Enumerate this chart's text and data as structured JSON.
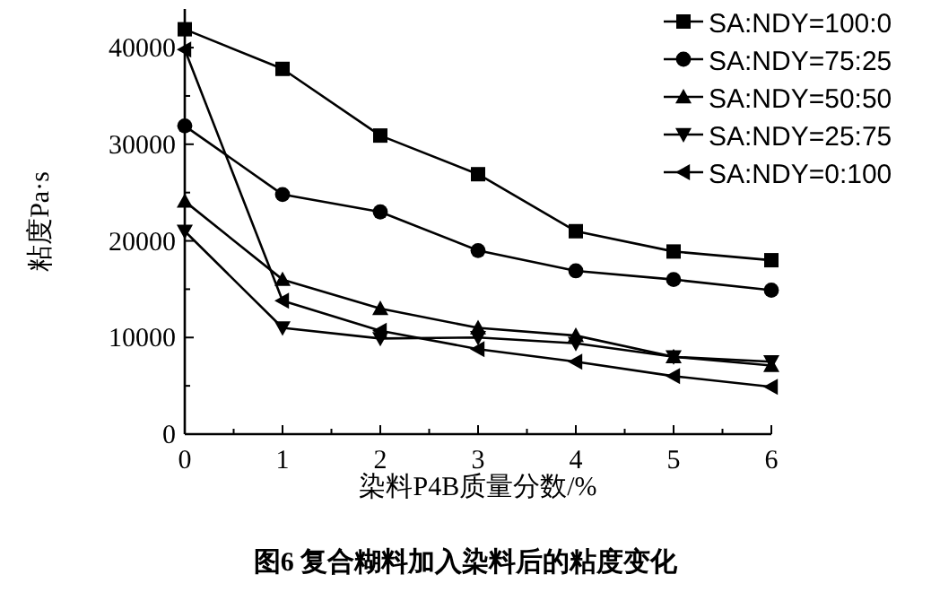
{
  "chart_data": {
    "type": "line",
    "xlabel": "染料P4B质量分数/%",
    "ylabel": "粘度Pa·s",
    "annotations": [
      "图6 复合糊料加入染料后的粘度变化"
    ],
    "x": [
      0,
      1,
      2,
      3,
      4,
      5,
      6
    ],
    "series": [
      {
        "name": "SA:NDY=100:0",
        "color": "#000000",
        "marker": "square",
        "values": [
          41900,
          37800,
          30900,
          26900,
          21000,
          18900,
          18000
        ]
      },
      {
        "name": "SA:NDY=75:25",
        "color": "#000000",
        "marker": "circle",
        "values": [
          31900,
          24800,
          23000,
          19000,
          16900,
          16000,
          14900
        ]
      },
      {
        "name": "SA:NDY=50:50",
        "color": "#000000",
        "marker": "triangle",
        "values": [
          24100,
          16000,
          13000,
          11000,
          10200,
          8000,
          7100
        ]
      },
      {
        "name": "SA:NDY=25:75",
        "color": "#000000",
        "marker": "triangle-down",
        "values": [
          21000,
          11000,
          9900,
          10000,
          9400,
          8000,
          7500
        ]
      },
      {
        "name": "SA:NDY=0:100",
        "color": "#000000",
        "marker": "triangle-left",
        "values": [
          39800,
          13800,
          10700,
          8800,
          7500,
          6000,
          4900
        ]
      }
    ],
    "xlim": [
      0,
      6
    ],
    "xticks": [
      0,
      1,
      2,
      3,
      4,
      5,
      6
    ],
    "ylim": [
      0,
      44000
    ],
    "yticks": [
      0,
      10000,
      20000,
      30000,
      40000
    ],
    "legend": "top right",
    "line_style": "solid",
    "grid": false
  }
}
